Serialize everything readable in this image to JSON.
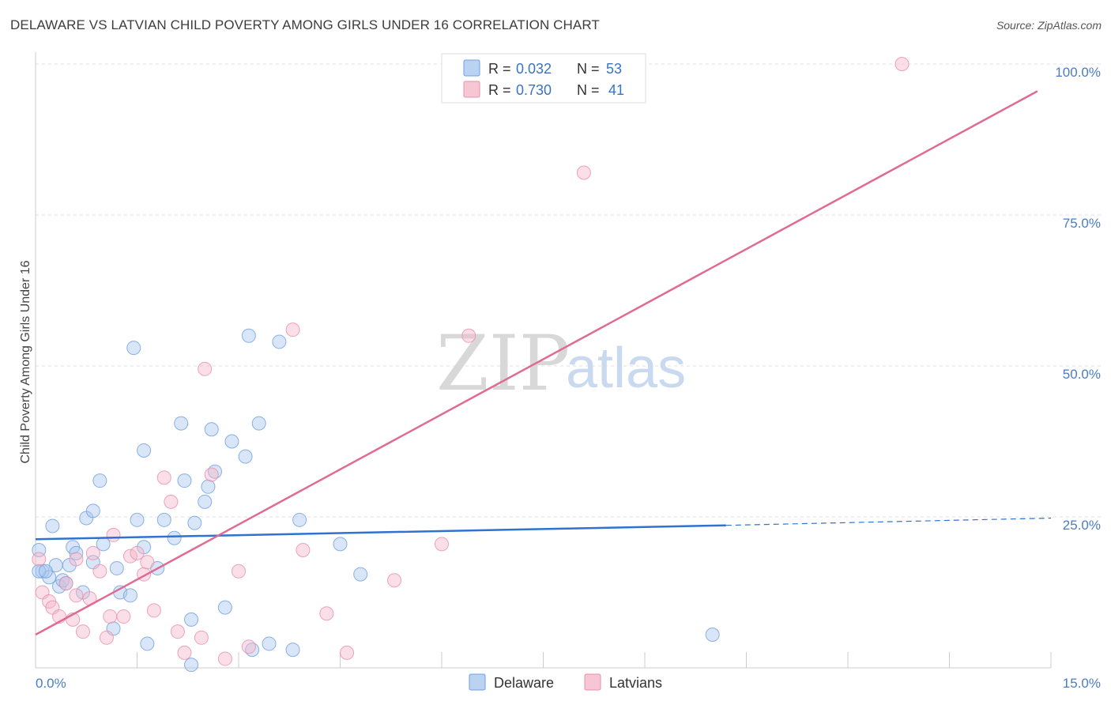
{
  "header": {
    "title": "DELAWARE VS LATVIAN CHILD POVERTY AMONG GIRLS UNDER 16 CORRELATION CHART",
    "source": "Source: ZipAtlas.com"
  },
  "watermark": {
    "zip": "ZIP",
    "atlas": "atlas"
  },
  "legend": {
    "rows": [
      {
        "r_label": "R =",
        "r_value": "0.032",
        "n_label": "N =",
        "n_value": "53",
        "color": "#a9c8f0"
      },
      {
        "r_label": "R =",
        "r_value": "0.730",
        "n_label": "N =",
        "n_value": "41",
        "color": "#f5b8cb"
      }
    ]
  },
  "bottom_legend": [
    {
      "label": "Delaware",
      "color": "#a9c8f0"
    },
    {
      "label": "Latvians",
      "color": "#f5b8cb"
    }
  ],
  "chart_data": {
    "type": "scatter",
    "title": "DELAWARE VS LATVIAN CHILD POVERTY AMONG GIRLS UNDER 16 CORRELATION CHART",
    "xlabel": "",
    "ylabel": "Child Poverty Among Girls Under 16",
    "xlim": [
      0,
      15
    ],
    "ylim": [
      0,
      100
    ],
    "x_tick_labels": [
      "0.0%",
      "15.0%"
    ],
    "y_ticks": [
      25,
      50,
      75,
      100
    ],
    "y_tick_labels": [
      "25.0%",
      "50.0%",
      "75.0%",
      "100.0%"
    ],
    "grid": true,
    "legend_position": "top-center",
    "series": [
      {
        "name": "Delaware",
        "color": "#a9c8f0",
        "stroke": "#6f9fe0",
        "trend": {
          "x0": 0.0,
          "y0": 21.3,
          "x1": 10.2,
          "y1": 23.6,
          "dash_to_x": 15.0,
          "dash_to_y": 24.8,
          "color": "#2f72d0"
        },
        "points": [
          [
            0.05,
            19.5
          ],
          [
            0.1,
            16.0
          ],
          [
            0.2,
            15.0
          ],
          [
            0.25,
            23.5
          ],
          [
            0.3,
            17.0
          ],
          [
            0.35,
            13.5
          ],
          [
            0.4,
            14.5
          ],
          [
            0.5,
            17.0
          ],
          [
            0.55,
            20.0
          ],
          [
            0.6,
            19.0
          ],
          [
            0.7,
            12.5
          ],
          [
            0.75,
            24.8
          ],
          [
            0.85,
            17.5
          ],
          [
            0.85,
            26.0
          ],
          [
            0.95,
            31.0
          ],
          [
            1.0,
            20.5
          ],
          [
            1.15,
            6.5
          ],
          [
            1.2,
            16.5
          ],
          [
            1.25,
            12.5
          ],
          [
            1.4,
            12.0
          ],
          [
            1.45,
            53.0
          ],
          [
            1.5,
            24.5
          ],
          [
            1.6,
            36.0
          ],
          [
            1.6,
            20.0
          ],
          [
            1.65,
            4.0
          ],
          [
            1.8,
            16.5
          ],
          [
            1.9,
            24.5
          ],
          [
            2.05,
            21.5
          ],
          [
            2.15,
            40.5
          ],
          [
            2.2,
            31.0
          ],
          [
            2.3,
            0.5
          ],
          [
            2.3,
            8.0
          ],
          [
            2.35,
            24.0
          ],
          [
            2.5,
            27.5
          ],
          [
            2.55,
            30.0
          ],
          [
            2.6,
            39.5
          ],
          [
            2.65,
            32.5
          ],
          [
            2.8,
            10.0
          ],
          [
            2.9,
            37.5
          ],
          [
            3.1,
            35.0
          ],
          [
            3.15,
            55.0
          ],
          [
            3.2,
            3.0
          ],
          [
            3.3,
            40.5
          ],
          [
            3.45,
            4.0
          ],
          [
            3.6,
            54.0
          ],
          [
            3.8,
            3.0
          ],
          [
            3.9,
            24.5
          ],
          [
            4.5,
            20.5
          ],
          [
            4.8,
            15.5
          ],
          [
            10.0,
            5.5
          ],
          [
            0.05,
            16.0
          ],
          [
            0.45,
            14.0
          ],
          [
            0.15,
            16.0
          ]
        ]
      },
      {
        "name": "Latvians",
        "color": "#f5b8cb",
        "stroke": "#ea8fab",
        "trend": {
          "x0": 0.0,
          "y0": 5.5,
          "x1": 14.8,
          "y1": 95.5,
          "color": "#e06a93"
        },
        "points": [
          [
            0.05,
            18.0
          ],
          [
            0.1,
            12.5
          ],
          [
            0.2,
            11.0
          ],
          [
            0.25,
            10.0
          ],
          [
            0.35,
            8.5
          ],
          [
            0.45,
            14.0
          ],
          [
            0.55,
            8.0
          ],
          [
            0.6,
            12.0
          ],
          [
            0.7,
            6.0
          ],
          [
            0.8,
            11.5
          ],
          [
            0.85,
            19.0
          ],
          [
            0.95,
            16.0
          ],
          [
            1.05,
            5.0
          ],
          [
            1.1,
            8.5
          ],
          [
            1.15,
            22.0
          ],
          [
            1.3,
            8.5
          ],
          [
            1.4,
            18.5
          ],
          [
            1.5,
            19.0
          ],
          [
            1.6,
            15.5
          ],
          [
            1.65,
            17.5
          ],
          [
            1.75,
            9.5
          ],
          [
            1.9,
            31.5
          ],
          [
            2.0,
            27.5
          ],
          [
            2.1,
            6.0
          ],
          [
            2.2,
            2.5
          ],
          [
            2.45,
            5.0
          ],
          [
            2.5,
            49.5
          ],
          [
            2.6,
            32.0
          ],
          [
            2.8,
            1.5
          ],
          [
            3.0,
            16.0
          ],
          [
            3.15,
            3.5
          ],
          [
            3.8,
            56.0
          ],
          [
            3.95,
            19.5
          ],
          [
            4.3,
            9.0
          ],
          [
            4.6,
            2.5
          ],
          [
            5.3,
            14.5
          ],
          [
            6.0,
            20.5
          ],
          [
            6.4,
            55.0
          ],
          [
            8.1,
            82.0
          ],
          [
            12.8,
            100.0
          ],
          [
            0.6,
            18.0
          ]
        ]
      }
    ]
  }
}
